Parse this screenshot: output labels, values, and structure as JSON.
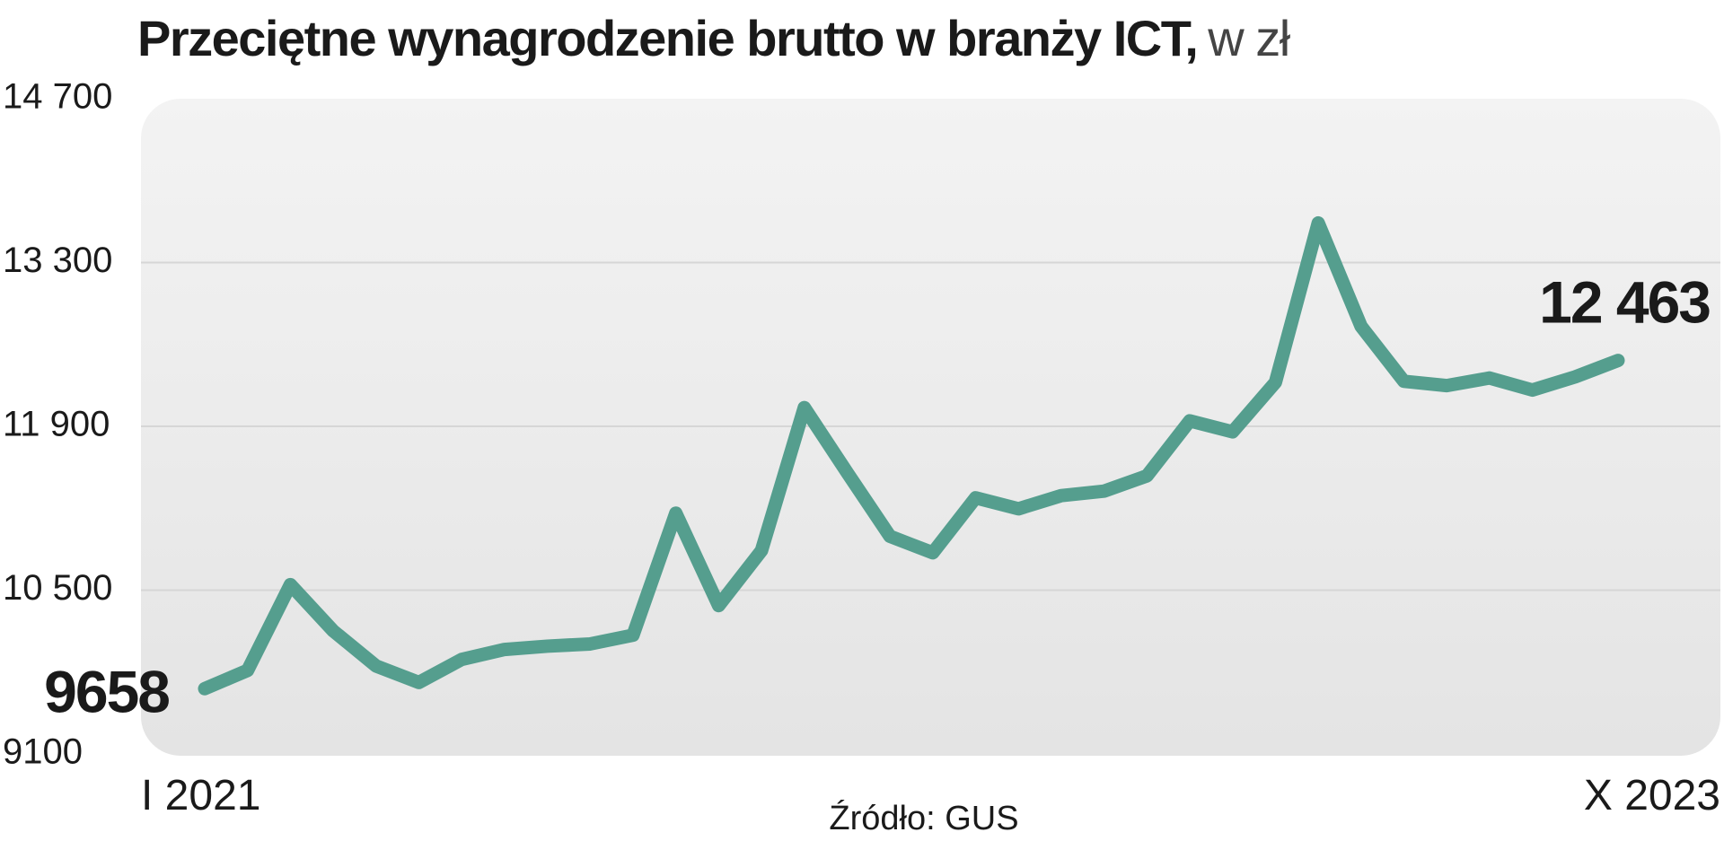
{
  "chart_data": {
    "type": "line",
    "title": "Przeciętne wynagrodzenie brutto w branży ICT,",
    "unit": "w zł",
    "source": "Źródło: GUS",
    "categories": [
      "I 2021",
      null,
      null,
      null,
      null,
      null,
      null,
      null,
      null,
      null,
      null,
      null,
      null,
      null,
      null,
      null,
      null,
      null,
      null,
      null,
      null,
      null,
      null,
      null,
      null,
      null,
      null,
      null,
      null,
      null,
      null,
      null,
      null,
      "X 2023"
    ],
    "series": [
      {
        "color": "#559e8e",
        "values": [
          9658,
          9814,
          10547,
          10152,
          9852,
          9711,
          9908,
          9993,
          10021,
          10040,
          10115,
          11158,
          10368,
          10838,
          12060,
          11505,
          10960,
          10819,
          11289,
          11195,
          11308,
          11346,
          11477,
          11947,
          11853,
          12276,
          13638,
          12755,
          12285,
          12248,
          12313,
          12210,
          12323,
          12463
        ],
        "value_labels": [
          "9658",
          null,
          null,
          null,
          null,
          null,
          null,
          null,
          null,
          null,
          null,
          null,
          null,
          null,
          null,
          null,
          null,
          null,
          null,
          null,
          null,
          null,
          null,
          null,
          null,
          null,
          null,
          null,
          null,
          null,
          null,
          null,
          null,
          "12 463"
        ]
      }
    ],
    "ylim": [
      9100,
      14700
    ],
    "yticks": [
      9100,
      {
        "value": 10500,
        "label": "10 500"
      },
      {
        "value": 11900,
        "label": "11 900"
      },
      {
        "value": 13300,
        "label": "13 300"
      },
      {
        "value": 14700,
        "label": "14 700"
      }
    ],
    "grid": true
  }
}
